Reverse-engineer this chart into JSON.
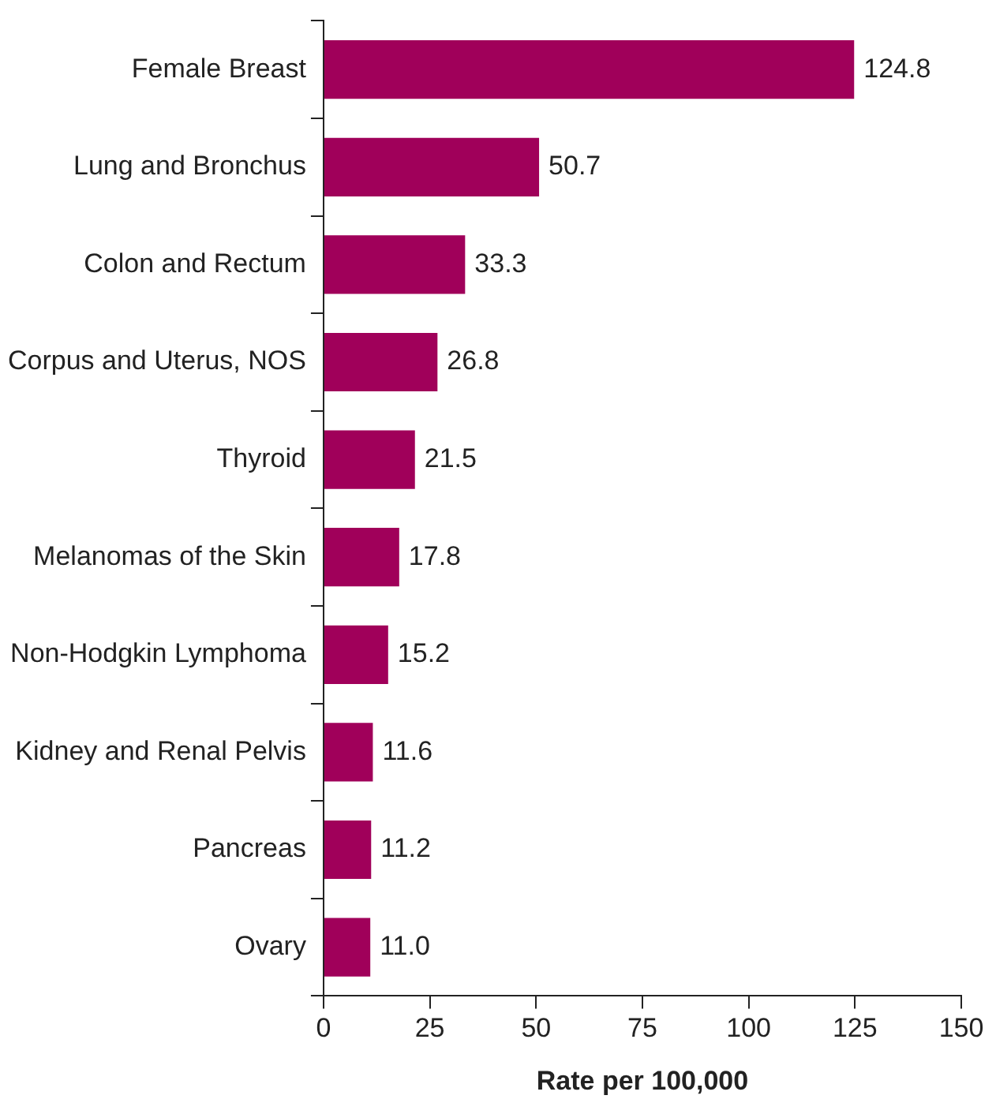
{
  "chart_data": {
    "type": "bar",
    "orientation": "horizontal",
    "xlabel": "Rate per 100,000",
    "categories": [
      "Female Breast",
      "Lung and Bronchus",
      "Colon and Rectum",
      "Corpus and Uterus, NOS",
      "Thyroid",
      "Melanomas of the Skin",
      "Non-Hodgkin Lymphoma",
      "Kidney and Renal Pelvis",
      "Pancreas",
      "Ovary"
    ],
    "values": [
      124.8,
      50.7,
      33.3,
      26.8,
      21.5,
      17.8,
      15.2,
      11.6,
      11.2,
      11.0
    ],
    "value_labels": [
      "124.8",
      "50.7",
      "33.3",
      "26.8",
      "21.5",
      "17.8",
      "15.2",
      "11.6",
      "11.2",
      "11.0"
    ],
    "color": "#a0005a",
    "xlim": [
      0,
      150
    ],
    "xticks": [
      0,
      25,
      50,
      75,
      100,
      125,
      150
    ]
  }
}
